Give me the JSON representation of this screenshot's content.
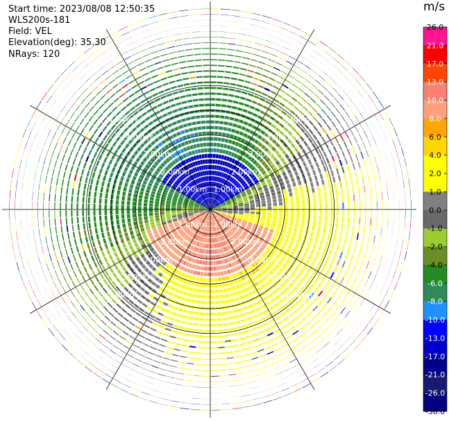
{
  "header": {
    "start_time": "Start time: 2023/08/08 12:50:35",
    "sensor": "WLS200s-181",
    "field": "Field: VEL",
    "elevation": "Elevation(deg): 35.30",
    "nrays": "NRays: 120"
  },
  "colorbar": {
    "unit": "m/s",
    "ticks": [
      "26.0",
      "21.0",
      "17.0",
      "13.0",
      "10.0",
      "8.0",
      "6.0",
      "4.0",
      "2.0",
      "1.0",
      "0.0",
      "-1.0",
      "-2.0",
      "-4.0",
      "-6.0",
      "-8.0",
      "-10.0",
      "-13.0",
      "-17.0",
      "-21.0",
      "-26.0",
      "-30.0"
    ],
    "colors": [
      "#ff1493",
      "#ff0000",
      "#ff4500",
      "#fa8072",
      "#ffa07a",
      "#ffa500",
      "#ffd700",
      "#ffff00",
      "#ffff00",
      "#808080",
      "#696969",
      "#9acd32",
      "#6b8e23",
      "#228b22",
      "#2e8b57",
      "#1e90ff",
      "#0000ff",
      "#0000cd",
      "#00008b",
      "#191970",
      "#000080"
    ]
  },
  "chart_data": {
    "type": "heatmap",
    "subtype": "polar-ppi",
    "field": "VEL",
    "units": "m/s",
    "elevation_deg": 35.3,
    "nrays": 120,
    "range_rings_km": [
      1.0,
      2.0,
      3.0,
      4.0,
      5.0
    ],
    "range_ring_labels": [
      "1.00km",
      "2.00km",
      "3.00km",
      "4.00km",
      "5.00km"
    ],
    "max_range_km": 5.0,
    "patterns": {
      "north_inner": "negative velocities (-6 to -10 m/s, green-blue)",
      "south_inner": "positive velocities (8 to 13 m/s, salmon-orange)",
      "east_middle": "positive velocities (2 to 4 m/s, yellow)",
      "west_middle": "negative velocities (-1 to -4 m/s, yellow-green)",
      "outer_ring": "noisy/unreliable values"
    }
  }
}
